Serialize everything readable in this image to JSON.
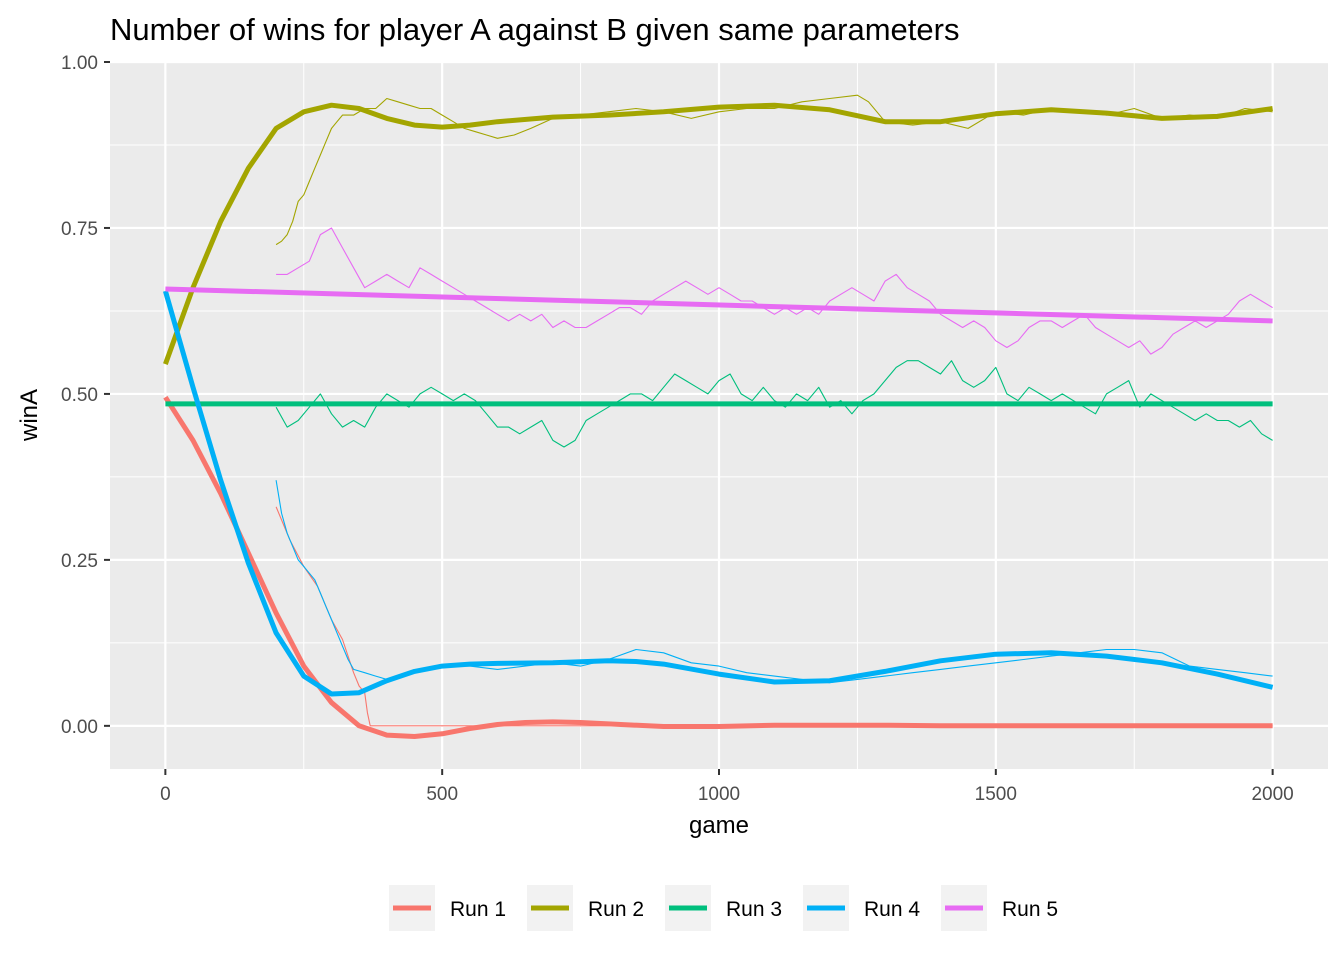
{
  "chart_data": {
    "type": "line",
    "title": "Number of wins for player A against B given same parameters",
    "xlabel": "game",
    "ylabel": "winA",
    "xlim": [
      -100,
      2100
    ],
    "ylim": [
      -0.065,
      1.0
    ],
    "x_ticks": [
      0,
      500,
      1000,
      1500,
      2000
    ],
    "x_tick_labels": [
      "0",
      "500",
      "1000",
      "1500",
      "2000"
    ],
    "y_ticks": [
      0,
      0.25,
      0.5,
      0.75,
      1.0
    ],
    "y_tick_labels": [
      "0.00",
      "0.25",
      "0.50",
      "0.75",
      "1.00"
    ],
    "grid": true,
    "legend_position": "bottom",
    "series": [
      {
        "name": "Run 1",
        "color": "#F8766D",
        "raw": {
          "x": [
            200,
            225,
            250,
            275,
            300,
            320,
            340,
            350,
            360,
            365,
            370,
            400,
            600,
            1000,
            1500,
            2000
          ],
          "y": [
            0.33,
            0.28,
            0.24,
            0.21,
            0.16,
            0.13,
            0.08,
            0.06,
            0.05,
            0.02,
            0.0,
            0.0,
            0.0,
            0.0,
            0.0,
            0.0
          ]
        },
        "smooth": {
          "x": [
            0,
            50,
            100,
            150,
            200,
            250,
            300,
            350,
            400,
            450,
            500,
            550,
            600,
            650,
            700,
            750,
            800,
            900,
            1000,
            1100,
            1200,
            1300,
            1400,
            1500,
            1600,
            1700,
            1800,
            1900,
            2000
          ],
          "y": [
            0.495,
            0.43,
            0.35,
            0.26,
            0.17,
            0.09,
            0.035,
            0.0,
            -0.014,
            -0.016,
            -0.012,
            -0.004,
            0.002,
            0.005,
            0.006,
            0.005,
            0.003,
            -0.001,
            -0.001,
            0.001,
            0.001,
            0.001,
            0.0,
            0.0,
            0.0,
            0.0,
            0.0,
            0.0,
            0.0
          ]
        }
      },
      {
        "name": "Run 2",
        "color": "#A3A500",
        "raw": {
          "x": [
            200,
            210,
            220,
            230,
            240,
            250,
            260,
            270,
            280,
            290,
            300,
            310,
            320,
            340,
            360,
            380,
            400,
            420,
            440,
            460,
            480,
            500,
            520,
            540,
            560,
            580,
            600,
            630,
            660,
            700,
            750,
            800,
            850,
            900,
            950,
            1000,
            1050,
            1100,
            1150,
            1200,
            1250,
            1270,
            1300,
            1350,
            1400,
            1450,
            1500,
            1550,
            1600,
            1650,
            1700,
            1750,
            1800,
            1850,
            1900,
            1950,
            2000
          ],
          "y": [
            0.725,
            0.73,
            0.74,
            0.76,
            0.79,
            0.8,
            0.82,
            0.84,
            0.86,
            0.88,
            0.9,
            0.91,
            0.92,
            0.92,
            0.93,
            0.93,
            0.945,
            0.94,
            0.935,
            0.93,
            0.93,
            0.92,
            0.91,
            0.9,
            0.895,
            0.89,
            0.885,
            0.89,
            0.9,
            0.915,
            0.92,
            0.925,
            0.93,
            0.925,
            0.915,
            0.925,
            0.93,
            0.93,
            0.94,
            0.945,
            0.95,
            0.94,
            0.91,
            0.905,
            0.91,
            0.9,
            0.925,
            0.92,
            0.93,
            0.925,
            0.92,
            0.93,
            0.915,
            0.92,
            0.915,
            0.93,
            0.925
          ]
        },
        "smooth": {
          "x": [
            0,
            50,
            100,
            150,
            200,
            250,
            300,
            350,
            400,
            450,
            500,
            550,
            600,
            700,
            800,
            900,
            1000,
            1100,
            1200,
            1300,
            1400,
            1500,
            1600,
            1700,
            1800,
            1900,
            2000
          ],
          "y": [
            0.545,
            0.66,
            0.76,
            0.84,
            0.9,
            0.925,
            0.935,
            0.93,
            0.915,
            0.905,
            0.902,
            0.905,
            0.91,
            0.917,
            0.92,
            0.925,
            0.932,
            0.935,
            0.928,
            0.91,
            0.91,
            0.922,
            0.928,
            0.923,
            0.915,
            0.918,
            0.93
          ]
        }
      },
      {
        "name": "Run 3",
        "color": "#00BF7D",
        "raw": {
          "x": [
            200,
            220,
            240,
            260,
            280,
            300,
            320,
            340,
            360,
            380,
            400,
            420,
            440,
            460,
            480,
            500,
            520,
            540,
            560,
            580,
            600,
            620,
            640,
            660,
            680,
            700,
            720,
            740,
            760,
            780,
            800,
            820,
            840,
            860,
            880,
            900,
            920,
            940,
            960,
            980,
            1000,
            1020,
            1040,
            1060,
            1080,
            1100,
            1120,
            1140,
            1160,
            1180,
            1200,
            1220,
            1240,
            1260,
            1280,
            1300,
            1320,
            1340,
            1360,
            1380,
            1400,
            1420,
            1440,
            1460,
            1480,
            1500,
            1520,
            1540,
            1560,
            1580,
            1600,
            1620,
            1640,
            1660,
            1680,
            1700,
            1720,
            1740,
            1760,
            1780,
            1800,
            1820,
            1840,
            1860,
            1880,
            1900,
            1920,
            1940,
            1960,
            1980,
            2000
          ],
          "y": [
            0.48,
            0.45,
            0.46,
            0.48,
            0.5,
            0.47,
            0.45,
            0.46,
            0.45,
            0.48,
            0.5,
            0.49,
            0.48,
            0.5,
            0.51,
            0.5,
            0.49,
            0.5,
            0.49,
            0.47,
            0.45,
            0.45,
            0.44,
            0.45,
            0.46,
            0.43,
            0.42,
            0.43,
            0.46,
            0.47,
            0.48,
            0.49,
            0.5,
            0.5,
            0.49,
            0.51,
            0.53,
            0.52,
            0.51,
            0.5,
            0.52,
            0.53,
            0.5,
            0.49,
            0.51,
            0.49,
            0.48,
            0.5,
            0.49,
            0.51,
            0.48,
            0.49,
            0.47,
            0.49,
            0.5,
            0.52,
            0.54,
            0.55,
            0.55,
            0.54,
            0.53,
            0.55,
            0.52,
            0.51,
            0.52,
            0.54,
            0.5,
            0.49,
            0.51,
            0.5,
            0.49,
            0.5,
            0.49,
            0.48,
            0.47,
            0.5,
            0.51,
            0.52,
            0.48,
            0.5,
            0.49,
            0.48,
            0.47,
            0.46,
            0.47,
            0.46,
            0.46,
            0.45,
            0.46,
            0.44,
            0.43
          ]
        },
        "smooth": {
          "x": [
            0,
            2000
          ],
          "y": [
            0.485,
            0.485
          ]
        }
      },
      {
        "name": "Run 4",
        "color": "#00B0F6",
        "raw": {
          "x": [
            200,
            210,
            220,
            230,
            240,
            250,
            260,
            270,
            280,
            290,
            300,
            310,
            320,
            330,
            340,
            360,
            380,
            400,
            420,
            440,
            460,
            480,
            500,
            550,
            600,
            650,
            700,
            750,
            800,
            850,
            900,
            950,
            1000,
            1050,
            1100,
            1150,
            1200,
            1250,
            1300,
            1350,
            1400,
            1450,
            1500,
            1550,
            1600,
            1650,
            1700,
            1750,
            1800,
            1850,
            1900,
            1950,
            2000
          ],
          "y": [
            0.37,
            0.32,
            0.29,
            0.27,
            0.25,
            0.24,
            0.23,
            0.22,
            0.2,
            0.18,
            0.16,
            0.14,
            0.12,
            0.1,
            0.085,
            0.08,
            0.075,
            0.07,
            0.075,
            0.08,
            0.085,
            0.088,
            0.09,
            0.09,
            0.085,
            0.09,
            0.095,
            0.09,
            0.1,
            0.115,
            0.11,
            0.095,
            0.09,
            0.08,
            0.075,
            0.07,
            0.065,
            0.07,
            0.075,
            0.08,
            0.085,
            0.09,
            0.095,
            0.1,
            0.105,
            0.11,
            0.115,
            0.115,
            0.11,
            0.09,
            0.085,
            0.08,
            0.075
          ]
        },
        "smooth": {
          "x": [
            0,
            50,
            100,
            150,
            200,
            250,
            300,
            350,
            400,
            450,
            500,
            550,
            600,
            700,
            800,
            850,
            900,
            1000,
            1100,
            1200,
            1300,
            1400,
            1500,
            1600,
            1700,
            1800,
            1900,
            2000
          ],
          "y": [
            0.655,
            0.51,
            0.37,
            0.245,
            0.14,
            0.075,
            0.048,
            0.05,
            0.068,
            0.082,
            0.09,
            0.093,
            0.094,
            0.095,
            0.098,
            0.097,
            0.093,
            0.078,
            0.066,
            0.068,
            0.082,
            0.098,
            0.108,
            0.11,
            0.105,
            0.095,
            0.078,
            0.058
          ]
        }
      },
      {
        "name": "Run 5",
        "color": "#E76BF3",
        "raw": {
          "x": [
            200,
            220,
            240,
            260,
            280,
            300,
            320,
            340,
            360,
            380,
            400,
            420,
            440,
            460,
            480,
            500,
            520,
            540,
            560,
            580,
            600,
            620,
            640,
            660,
            680,
            700,
            720,
            740,
            760,
            780,
            800,
            820,
            840,
            860,
            880,
            900,
            920,
            940,
            960,
            980,
            1000,
            1020,
            1040,
            1060,
            1080,
            1100,
            1120,
            1140,
            1160,
            1180,
            1200,
            1220,
            1240,
            1260,
            1280,
            1300,
            1320,
            1340,
            1360,
            1380,
            1400,
            1420,
            1440,
            1460,
            1480,
            1500,
            1520,
            1540,
            1560,
            1580,
            1600,
            1620,
            1640,
            1660,
            1680,
            1700,
            1720,
            1740,
            1760,
            1780,
            1800,
            1820,
            1840,
            1860,
            1880,
            1900,
            1920,
            1940,
            1960,
            1980,
            2000
          ],
          "y": [
            0.68,
            0.68,
            0.69,
            0.7,
            0.74,
            0.75,
            0.72,
            0.69,
            0.66,
            0.67,
            0.68,
            0.67,
            0.66,
            0.69,
            0.68,
            0.67,
            0.66,
            0.65,
            0.64,
            0.63,
            0.62,
            0.61,
            0.62,
            0.61,
            0.62,
            0.6,
            0.61,
            0.6,
            0.6,
            0.61,
            0.62,
            0.63,
            0.63,
            0.62,
            0.64,
            0.65,
            0.66,
            0.67,
            0.66,
            0.65,
            0.66,
            0.65,
            0.64,
            0.64,
            0.63,
            0.62,
            0.63,
            0.62,
            0.63,
            0.62,
            0.64,
            0.65,
            0.66,
            0.65,
            0.64,
            0.67,
            0.68,
            0.66,
            0.65,
            0.64,
            0.62,
            0.61,
            0.6,
            0.61,
            0.6,
            0.58,
            0.57,
            0.58,
            0.6,
            0.61,
            0.61,
            0.6,
            0.61,
            0.62,
            0.6,
            0.59,
            0.58,
            0.57,
            0.58,
            0.56,
            0.57,
            0.59,
            0.6,
            0.61,
            0.6,
            0.61,
            0.62,
            0.64,
            0.65,
            0.64,
            0.63
          ]
        },
        "smooth": {
          "x": [
            0,
            2000
          ],
          "y": [
            0.658,
            0.61
          ]
        }
      }
    ]
  }
}
